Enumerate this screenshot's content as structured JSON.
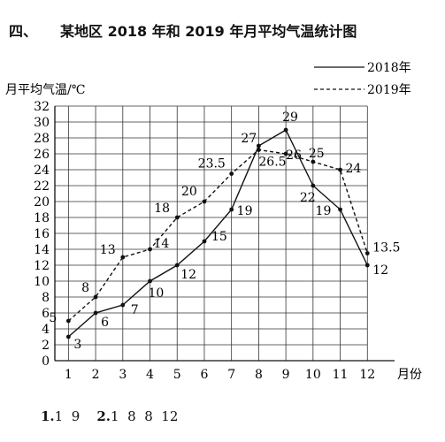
{
  "heading": {
    "number": "四、",
    "text": "某地区 2018 年和 2019 年月平均气温统计图"
  },
  "answer_line": {
    "part1_label": "1.",
    "part1_value": "1  9",
    "part2_label": "2.",
    "part2_value": "1  8  8  12"
  },
  "chart_data": {
    "type": "line",
    "title": "某地区 2018 年和 2019 年月平均气温统计图",
    "ylabel": "月平均气温/℃",
    "xlabel": "月份",
    "categories": [
      "1",
      "2",
      "3",
      "4",
      "5",
      "6",
      "7",
      "8",
      "9",
      "10",
      "11",
      "12"
    ],
    "ylim": [
      0,
      32
    ],
    "yticks": [
      "0",
      "2",
      "4",
      "6",
      "8",
      "10",
      "12",
      "14",
      "16",
      "18",
      "20",
      "22",
      "24",
      "26",
      "28",
      "30",
      "32"
    ],
    "grid": true,
    "legend_position": "top-right",
    "series": [
      {
        "name": "2018年",
        "style": "solid",
        "values": [
          3,
          6,
          7,
          10,
          12,
          15,
          19,
          27,
          29,
          22,
          19,
          12
        ],
        "labels": [
          "3",
          "6",
          "7",
          "10",
          "12",
          "15",
          "19",
          "27",
          "29",
          "22",
          "19",
          "12"
        ]
      },
      {
        "name": "2019年",
        "style": "dashed",
        "values": [
          5,
          8,
          13,
          14,
          18,
          20,
          23.5,
          26.5,
          26,
          25,
          24,
          13.5
        ],
        "labels": [
          "5",
          "8",
          "13",
          "14",
          "18",
          "20",
          "23.5",
          "26.5",
          "26",
          "25",
          "24",
          "13.5"
        ]
      }
    ]
  }
}
